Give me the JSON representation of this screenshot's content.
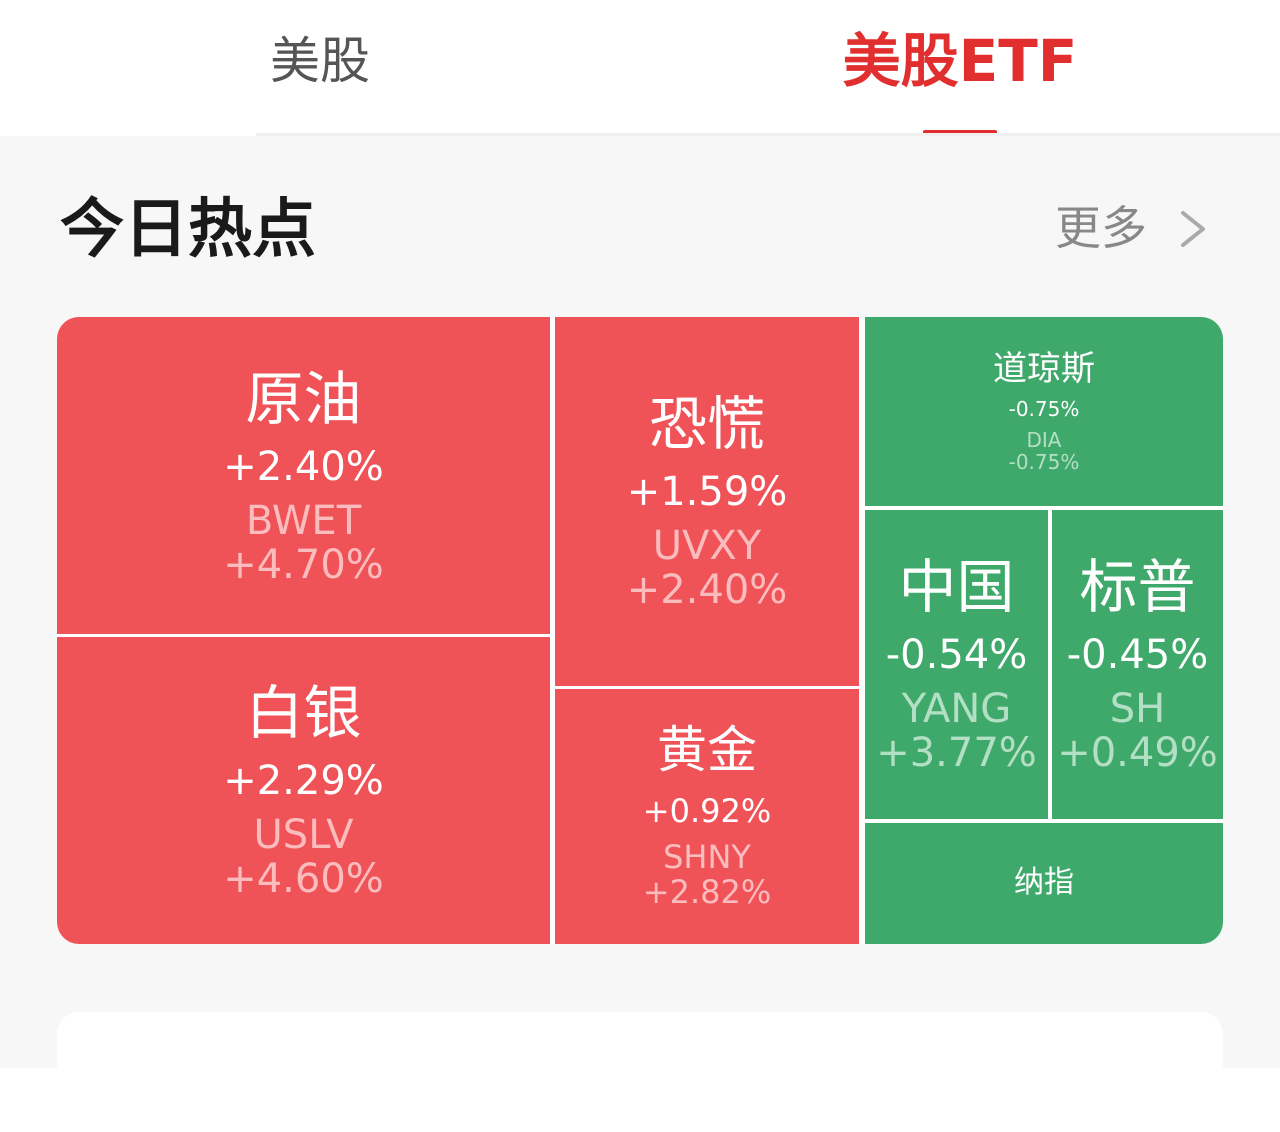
{
  "tabs": [
    {
      "label": "美股",
      "active": false
    },
    {
      "label": "美股ETF",
      "active": true
    }
  ],
  "section": {
    "title": "今日热点",
    "more_label": "更多"
  },
  "colors": {
    "accent": "#e12f2f",
    "up": "#ef5358",
    "down": "#3fa86b"
  },
  "heatmap": {
    "crude_oil": {
      "name": "原油",
      "change": "+2.40%",
      "symbol": "BWET",
      "symbol_change": "+4.70%"
    },
    "silver": {
      "name": "白银",
      "change": "+2.29%",
      "symbol": "USLV",
      "symbol_change": "+4.60%"
    },
    "panic": {
      "name": "恐慌",
      "change": "+1.59%",
      "symbol": "UVXY",
      "symbol_change": "+2.40%"
    },
    "gold": {
      "name": "黄金",
      "change": "+0.92%",
      "symbol": "SHNY",
      "symbol_change": "+2.82%"
    },
    "dow": {
      "name": "道琼斯",
      "change": "-0.75%",
      "symbol": "DIA",
      "symbol_change": "-0.75%"
    },
    "china": {
      "name": "中国",
      "change": "-0.54%",
      "symbol": "YANG",
      "symbol_change": "+3.77%"
    },
    "sp": {
      "name": "标普",
      "change": "-0.45%",
      "symbol": "SH",
      "symbol_change": "+0.49%"
    },
    "nasdaq": {
      "name": "纳指"
    }
  }
}
